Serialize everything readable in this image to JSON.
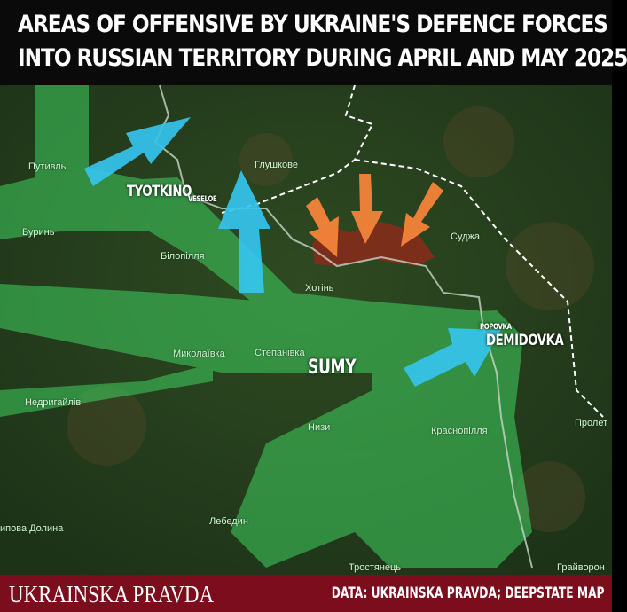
{
  "header": {
    "title_line1": "AREAS OF OFFENSIVE BY UKRAINE'S DEFENCE FORCES",
    "title_line2": "INTO RUSSIAN TERRITORY DURING APRIL AND MAY 2025"
  },
  "map": {
    "highlighted_places": {
      "tyotkino": "TYOTKINO",
      "veseloe": "VESELOE",
      "sumy": "SUMY",
      "popovka": "POPOVKA",
      "demidovka": "DEMIDOVKA"
    },
    "places": {
      "putyvl": "Путивль",
      "buryn": "Буринь",
      "glushkove": "Глушкове",
      "bilopillia": "Білопілля",
      "khotin": "Хотінь",
      "sudzha": "Суджа",
      "mykolaivka": "Миколаївка",
      "stepanivka": "Степанівка",
      "nedryhailiv": "Недригайлів",
      "nyzy": "Низи",
      "krasnopillia": "Краснопілля",
      "proletarskyi": "Пролет",
      "lypova_dolyna": "ипова Долина",
      "lebedyn": "Лебедин",
      "trostianets": "Тростянець",
      "hraivoron": "Грайворон"
    },
    "colors": {
      "ukraine_offensive": "#35c4ee",
      "russian_offensive": "#f5843a",
      "occupied_area": "#8a2a1a",
      "ukraine_control_band": "#3fd160",
      "border": "#ffffff"
    }
  },
  "footer": {
    "brand": "UKRAINSKA PRAVDA",
    "source": "DATA: UKRAINSKA PRAVDA; DEEPSTATE MAP"
  }
}
